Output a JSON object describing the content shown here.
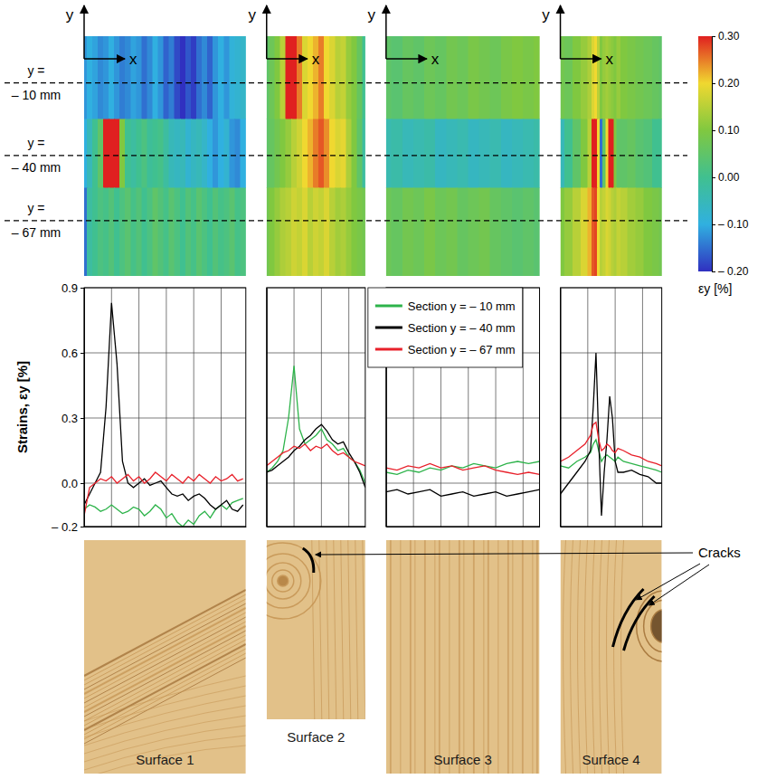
{
  "chart_data": [
    {
      "type": "line",
      "title": "Surface 1",
      "ylabel": "Strains, εy [%]",
      "x": [
        0,
        2,
        4,
        6,
        8,
        10,
        12,
        14,
        16,
        18,
        20,
        22,
        24,
        26,
        28,
        30,
        32,
        34,
        36,
        38,
        40,
        42,
        44,
        46,
        48,
        50,
        52,
        54,
        56,
        58
      ],
      "xlim": [
        0,
        59
      ],
      "xticks": [
        0,
        10,
        20,
        30,
        40,
        50
      ],
      "ylim": [
        -0.2,
        0.9
      ],
      "yticks": [
        {
          "value": -0.2,
          "label": "– 0.2"
        },
        {
          "value": 0,
          "label": "0.0"
        },
        0.3,
        0.6,
        0.9
      ],
      "grid": true,
      "tick_labels": "y",
      "series": [
        {
          "name": "Section y = – 10 mm",
          "color": "#2db34a",
          "values": [
            -0.12,
            -0.1,
            -0.11,
            -0.13,
            -0.12,
            -0.1,
            -0.12,
            -0.14,
            -0.13,
            -0.11,
            -0.12,
            -0.15,
            -0.13,
            -0.1,
            -0.12,
            -0.16,
            -0.14,
            -0.18,
            -0.2,
            -0.17,
            -0.19,
            -0.15,
            -0.13,
            -0.16,
            -0.12,
            -0.1,
            -0.12,
            -0.09,
            -0.08,
            -0.07
          ]
        },
        {
          "name": "Section y = – 40 mm",
          "color": "#000000",
          "values": [
            -0.1,
            -0.05,
            0.0,
            0.05,
            0.35,
            0.83,
            0.55,
            0.1,
            0.0,
            -0.02,
            0.0,
            0.02,
            -0.01,
            0.0,
            0.01,
            -0.02,
            -0.05,
            -0.06,
            -0.05,
            -0.08,
            -0.06,
            -0.05,
            -0.07,
            -0.1,
            -0.12,
            -0.1,
            -0.08,
            -0.12,
            -0.13,
            -0.1
          ]
        },
        {
          "name": "Section y = – 67 mm",
          "color": "#e8202a",
          "values": [
            -0.15,
            -0.02,
            0.0,
            0.02,
            0.01,
            0.03,
            0.0,
            0.02,
            0.04,
            0.01,
            0.03,
            0.0,
            0.02,
            0.05,
            0.03,
            0.01,
            0.04,
            0.02,
            0.0,
            0.03,
            0.01,
            0.04,
            0.02,
            0.0,
            0.03,
            0.01,
            0.02,
            0.04,
            0.01,
            0.02
          ]
        }
      ]
    },
    {
      "type": "line",
      "title": "Surface 2",
      "x": [
        0,
        2,
        4,
        6,
        8,
        10,
        12,
        14,
        16,
        18,
        20,
        22,
        24,
        26,
        28,
        30,
        32,
        34,
        36
      ],
      "xlim": [
        0,
        36
      ],
      "xticks": [
        0,
        10,
        20,
        30
      ],
      "ylim": [
        -0.2,
        0.9
      ],
      "yticks": [
        -0.2,
        0,
        0.3,
        0.6,
        0.9
      ],
      "grid": true,
      "tick_labels": false,
      "series": [
        {
          "name": "Section y = – 10 mm",
          "color": "#2db34a",
          "values": [
            0.05,
            0.07,
            0.1,
            0.15,
            0.3,
            0.54,
            0.25,
            0.18,
            0.2,
            0.22,
            0.25,
            0.2,
            0.18,
            0.15,
            0.16,
            0.12,
            0.1,
            0.06,
            0.0
          ]
        },
        {
          "name": "Section y = – 40 mm",
          "color": "#000000",
          "values": [
            0.05,
            0.06,
            0.08,
            0.1,
            0.12,
            0.15,
            0.17,
            0.2,
            0.22,
            0.25,
            0.27,
            0.24,
            0.2,
            0.18,
            0.19,
            0.14,
            0.1,
            0.05,
            -0.02
          ]
        },
        {
          "name": "Section y = – 67 mm",
          "color": "#e8202a",
          "values": [
            0.08,
            0.1,
            0.12,
            0.14,
            0.15,
            0.17,
            0.16,
            0.18,
            0.15,
            0.17,
            0.16,
            0.18,
            0.15,
            0.13,
            0.14,
            0.12,
            0.1,
            0.09,
            0.08
          ]
        }
      ]
    },
    {
      "type": "line",
      "title": "Surface 3",
      "x": [
        0,
        4,
        8,
        12,
        16,
        20,
        24,
        28,
        32,
        36,
        40,
        44,
        48,
        52,
        56
      ],
      "xlim": [
        0,
        56
      ],
      "xticks": [
        0,
        10,
        20,
        30,
        40,
        50
      ],
      "ylim": [
        -0.2,
        0.9
      ],
      "yticks": [
        -0.2,
        0,
        0.3,
        0.6,
        0.9
      ],
      "grid": true,
      "tick_labels": false,
      "legend": "upper left",
      "series": [
        {
          "name": "Section y = – 10 mm",
          "color": "#2db34a",
          "values": [
            0.05,
            0.04,
            0.06,
            0.05,
            0.07,
            0.06,
            0.08,
            0.07,
            0.09,
            0.08,
            0.07,
            0.09,
            0.1,
            0.09,
            0.1
          ]
        },
        {
          "name": "Section y = – 40 mm",
          "color": "#000000",
          "values": [
            -0.04,
            -0.03,
            -0.05,
            -0.04,
            -0.03,
            -0.06,
            -0.05,
            -0.04,
            -0.06,
            -0.05,
            -0.04,
            -0.06,
            -0.05,
            -0.04,
            -0.03
          ]
        },
        {
          "name": "Section y = – 67 mm",
          "color": "#e8202a",
          "values": [
            0.07,
            0.06,
            0.08,
            0.07,
            0.09,
            0.07,
            0.08,
            0.06,
            0.07,
            0.08,
            0.06,
            0.05,
            0.04,
            0.05,
            0.04
          ]
        }
      ]
    },
    {
      "type": "line",
      "title": "Surface 4",
      "x": [
        0,
        3,
        6,
        9,
        11,
        12,
        13,
        14,
        15,
        16,
        17,
        18,
        19,
        20,
        21,
        23,
        26,
        29,
        32,
        35,
        37
      ],
      "xlim": [
        0,
        37
      ],
      "xticks": [
        0,
        10,
        20,
        30
      ],
      "ylim": [
        -0.2,
        0.9
      ],
      "yticks": [
        -0.2,
        0,
        0.3,
        0.6,
        0.9
      ],
      "grid": true,
      "tick_labels": false,
      "series": [
        {
          "name": "Section y = – 10 mm",
          "color": "#2db34a",
          "values": [
            0.08,
            0.07,
            0.1,
            0.12,
            0.14,
            0.18,
            0.2,
            0.15,
            0.1,
            0.12,
            0.13,
            0.12,
            0.11,
            0.1,
            0.12,
            0.1,
            0.09,
            0.08,
            0.07,
            0.06,
            0.05
          ]
        },
        {
          "name": "Section y = – 40 mm",
          "color": "#000000",
          "values": [
            -0.05,
            0.0,
            0.05,
            0.1,
            0.15,
            0.35,
            0.6,
            0.2,
            -0.15,
            0.05,
            0.2,
            0.4,
            0.3,
            0.1,
            0.05,
            0.05,
            0.06,
            0.04,
            0.03,
            0.0,
            0.0
          ]
        },
        {
          "name": "Section y = – 67 mm",
          "color": "#e8202a",
          "values": [
            0.1,
            0.12,
            0.15,
            0.18,
            0.22,
            0.27,
            0.28,
            0.2,
            0.15,
            0.16,
            0.18,
            0.17,
            0.15,
            0.14,
            0.16,
            0.15,
            0.13,
            0.12,
            0.1,
            0.09,
            0.08
          ]
        }
      ]
    }
  ],
  "strain_map": {
    "axis_labels": {
      "x": "x",
      "y": "y"
    },
    "sections": [
      {
        "y": -10,
        "label": [
          "y =",
          "– 10 mm"
        ]
      },
      {
        "y": -40,
        "label": [
          "y =",
          "– 40 mm"
        ]
      },
      {
        "y": -67,
        "label": [
          "y =",
          "– 67 mm"
        ]
      }
    ],
    "colorbar": {
      "label": "εy [%]",
      "range": [
        -0.2,
        0.3
      ],
      "ticks": [
        {
          "value": -0.2,
          "label": "– 0.20"
        },
        {
          "value": -0.1,
          "label": "– 0.10"
        },
        {
          "value": 0,
          "label": "0.00"
        },
        {
          "value": 0.1,
          "label": "0.10"
        },
        {
          "value": 0.2,
          "label": "0.20"
        },
        {
          "value": 0.3,
          "label": "0.30"
        }
      ],
      "colors": [
        "#3030c0",
        "#30b0e0",
        "#40c090",
        "#80c840",
        "#f0d830",
        "#e02020"
      ]
    }
  },
  "annotation": {
    "text": "Cracks"
  }
}
